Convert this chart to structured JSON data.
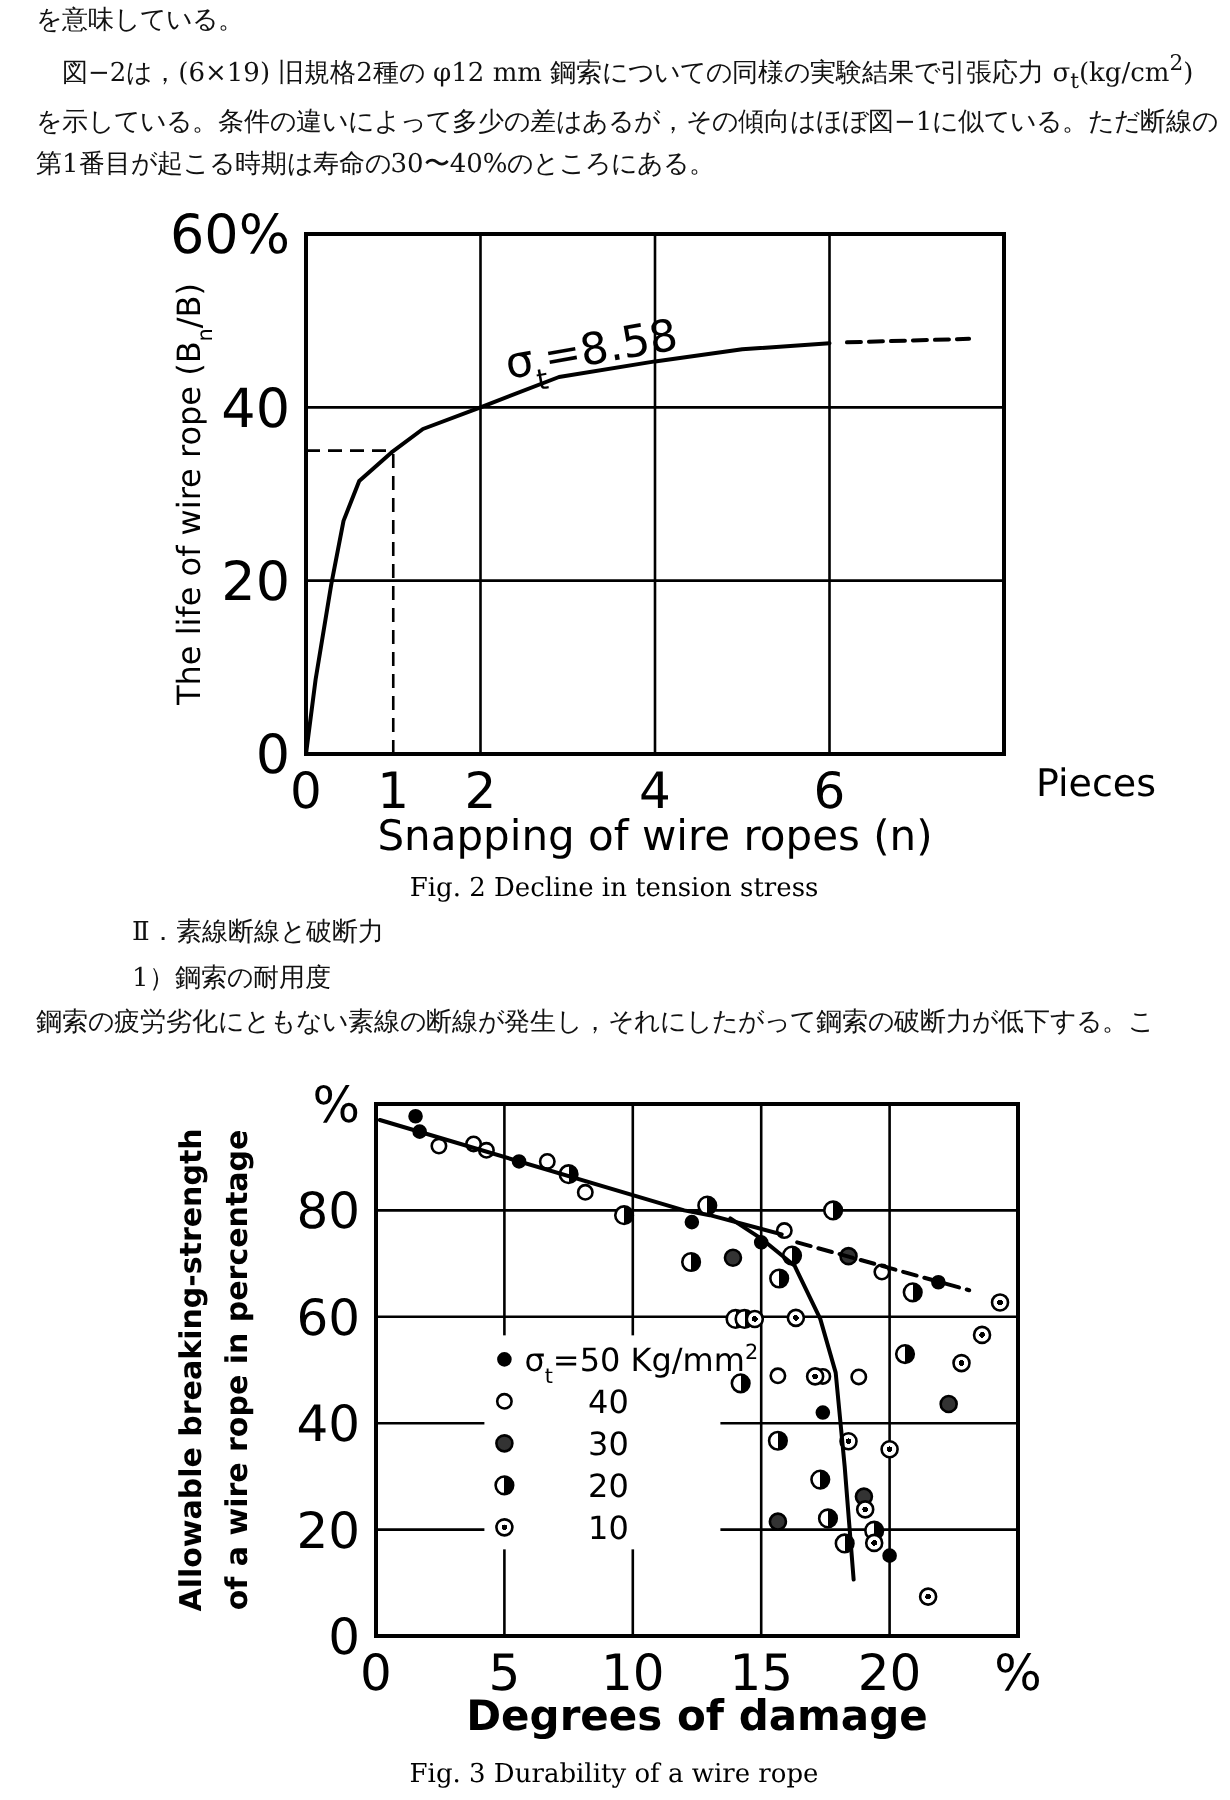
{
  "chart_data": [
    {
      "type": "line",
      "title": "Fig. 2  Decline in tension stress",
      "xlabel": "Snapping of wire ropes (n)",
      "ylabel": "The life of wire rope (B$_{n}$/B)",
      "annotations": [
        "を意味している。",
        "図−2は，(6×19) 旧規格2種の φ12 mm 鋼索についての同様の実験結果で引張応力 σ$_{t}$(kg/cm$^{2}$) を示している。条件の違いによって多少の差はあるが，その傾向はほぼ図−1に似ている。ただ断線の第1番目が起こる時期は寿命の30〜40%のところにある。",
        "Pieces",
        {
          "text": "σ$_{t}$=8.58",
          "x": 3.3,
          "y": 45
        }
      ],
      "xlim": [
        0,
        8
      ],
      "ylim": [
        0,
        60
      ],
      "xticks": [
        0,
        1,
        2,
        4,
        6
      ],
      "yticks": [
        0,
        20,
        40,
        {
          "value": 60,
          "label": "60%"
        }
      ],
      "grid": true,
      "series": [
        {
          "color": "#000000",
          "x": [
            0,
            0.11,
            0.29,
            0.43,
            0.61,
            0.98,
            1.34,
            2,
            2.9,
            4,
            5,
            6
          ],
          "values": [
            0,
            8.6,
            19.6,
            26.9,
            31.5,
            34.8,
            37.5,
            40,
            43.5,
            45.3,
            46.7,
            47.4
          ]
        },
        {
          "color": "#000000",
          "line_style": "dashed",
          "x": [
            6.2,
            7.6
          ],
          "values": [
            47.5,
            47.9
          ]
        }
      ],
      "ref_lines": [
        {
          "axis": "x",
          "value": 1,
          "line_style": "dashed"
        },
        {
          "axis": "y",
          "value": 35,
          "line_style": "dashed"
        }
      ]
    },
    {
      "type": "scatter",
      "title": "Fig. 3  Durability of a wire rope",
      "xlabel": "Degrees of damage",
      "ylabel": "Allowable breaking-strength of a wire rope in percentage",
      "annotations": [
        "Ⅱ．素線断線と破断力",
        "1）鋼索の耐用度",
        "鋼索の疲労劣化にともない素線の断線が発生し，それにしたがって鋼索の破断力が低下する。こ"
      ],
      "xlim": [
        0,
        25
      ],
      "ylim": [
        0,
        100
      ],
      "xticks": [
        0,
        5,
        10,
        15,
        20,
        {
          "value": 25,
          "label": "%"
        }
      ],
      "yticks": [
        0,
        20,
        40,
        60,
        80,
        {
          "value": 100,
          "label": "%"
        }
      ],
      "grid": true,
      "legend": "left",
      "marker": "circle",
      "series": [
        {
          "name": "σ$_{t}$=50 Kg/mm$^{2}$",
          "color": "#000000",
          "x": [
            1.54,
            1.7,
            5.57,
            12.3,
            15,
            17.4,
            20,
            21.9
          ],
          "values": [
            97.7,
            94.8,
            89.2,
            77.8,
            74,
            42,
            15.1,
            66.5
          ]
        },
        {
          "name": "40",
          "color": "#000000",
          "x": [
            2.45,
            3.8,
            4.3,
            6.67,
            8.15,
            15.9,
            19.7,
            15.65,
            17.4,
            18.8
          ],
          "values": [
            92.1,
            92.5,
            91.3,
            89.2,
            83.4,
            76.2,
            68.4,
            48.9,
            48.8,
            48.7
          ]
        },
        {
          "name": "30",
          "color": "#000000",
          "x": [
            13.9,
            18.4,
            19,
            15.65,
            22.3
          ],
          "values": [
            71.1,
            71.4,
            26.2,
            21.5,
            43.6
          ]
        },
        {
          "name": "20",
          "color": "#000000",
          "x": [
            7.5,
            9.66,
            12.9,
            12.27,
            16.2,
            15.7,
            17.8,
            20.9,
            20.6,
            14.2,
            15.65,
            17.3,
            17.6,
            18.25,
            19.4,
            14,
            14.35
          ],
          "values": [
            86.8,
            79.1,
            80.9,
            70.3,
            71.5,
            67.2,
            80,
            64.6,
            53,
            47.5,
            36.7,
            29.4,
            22.1,
            17.4,
            19.8,
            59.6,
            59.6
          ]
        },
        {
          "name": "10",
          "color": "#000000",
          "x": [
            24.3,
            16.35,
            14.75,
            23.6,
            22.8,
            17.1,
            18.4,
            20,
            19.05,
            19.4,
            21.5
          ],
          "values": [
            62.7,
            59.8,
            59.6,
            56.6,
            51.3,
            48.8,
            36.6,
            35.1,
            23.8,
            17.5,
            7.4
          ]
        },
        {
          "type": "line",
          "marker": "none",
          "color": "#000000",
          "x": [
            0.15,
            12,
            13,
            15.8
          ],
          "values": [
            97,
            80,
            79.1,
            75.5
          ]
        },
        {
          "type": "line",
          "marker": "none",
          "color": "#000000",
          "x": [
            13.8,
            15,
            16.3,
            17.3,
            17.9,
            18.25,
            18.6
          ],
          "values": [
            78.5,
            74.7,
            69.6,
            59.6,
            49.5,
            31.9,
            10.6
          ]
        },
        {
          "type": "line",
          "marker": "none",
          "color": "#000000",
          "line_style": "dashed",
          "x": [
            16.4,
            23.1
          ],
          "values": [
            74,
            65
          ]
        }
      ]
    }
  ]
}
